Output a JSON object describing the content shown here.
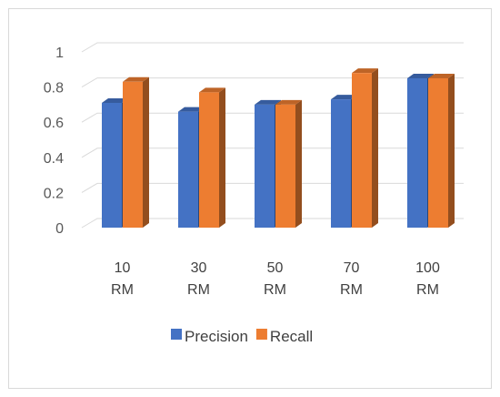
{
  "chart_data": {
    "type": "bar",
    "categories": [
      [
        "10",
        "RM"
      ],
      [
        "30",
        "RM"
      ],
      [
        "50",
        "RM"
      ],
      [
        "70",
        "RM"
      ],
      [
        "100",
        "RM"
      ]
    ],
    "series": [
      {
        "name": "Precision",
        "values": [
          0.71,
          0.66,
          0.7,
          0.73,
          0.85
        ],
        "color": "#4472C4"
      },
      {
        "name": "Recall",
        "values": [
          0.83,
          0.77,
          0.7,
          0.88,
          0.85
        ],
        "color": "#ED7D31"
      }
    ],
    "yticks": [
      "0",
      "0.2",
      "0.4",
      "0.6",
      "0.8",
      "1"
    ],
    "ylim": [
      0,
      1
    ],
    "grid": true,
    "legend_position": "bottom",
    "style": "3d-clustered-column"
  }
}
